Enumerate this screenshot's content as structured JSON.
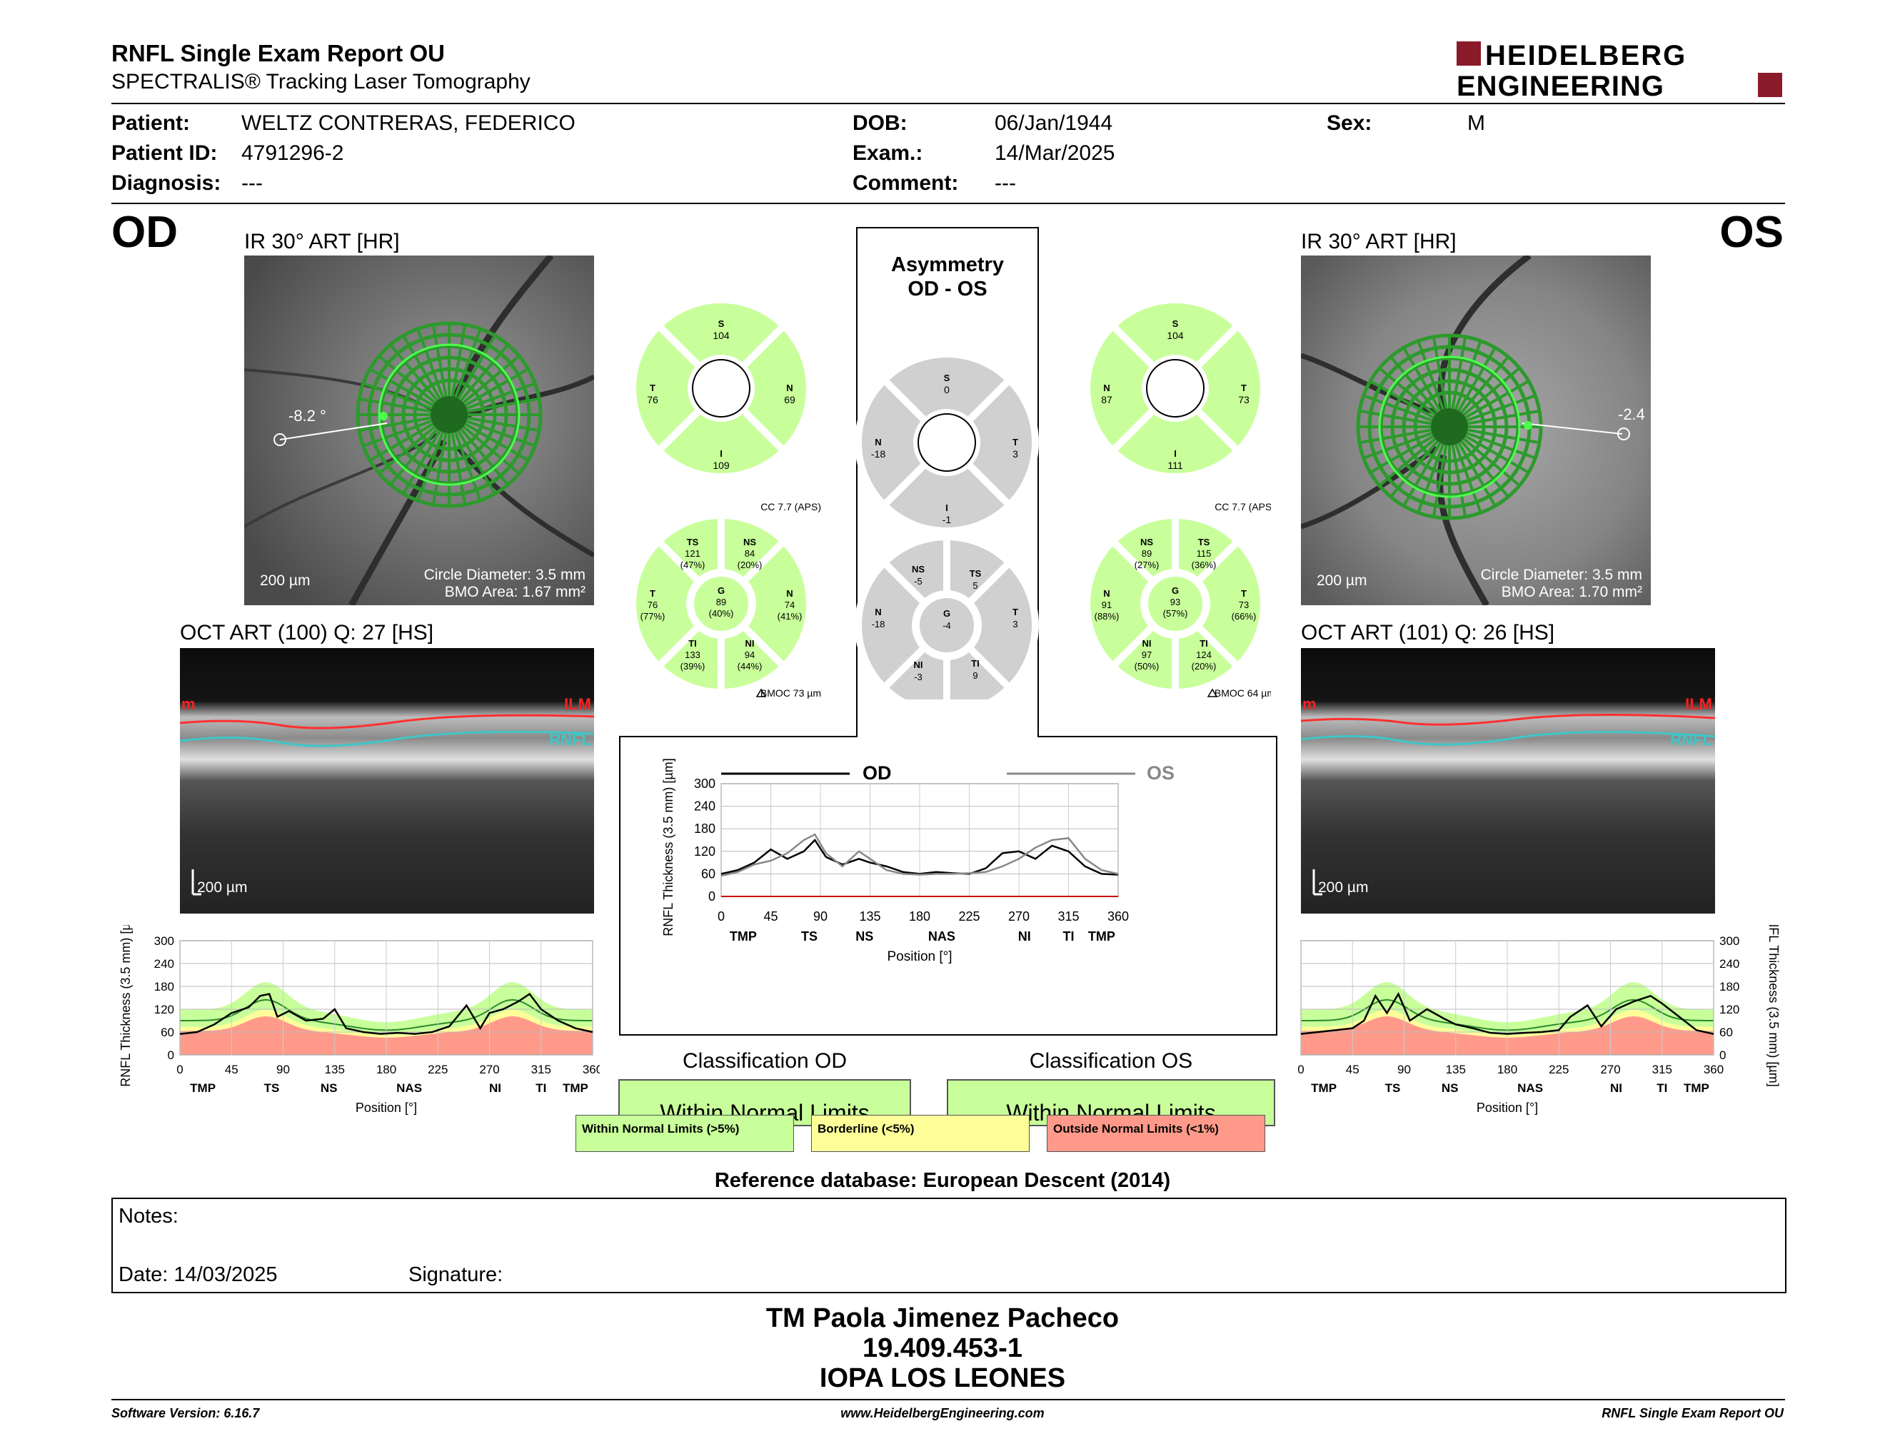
{
  "header": {
    "title": "RNFL Single Exam Report OU",
    "subtitle": "SPECTRALIS® Tracking Laser Tomography",
    "logo_line1": "HEIDELBERG",
    "logo_line2": "ENGINEERING"
  },
  "patient": {
    "patient_label": "Patient:",
    "patient_value": "WELTZ CONTRERAS, FEDERICO",
    "id_label": "Patient ID:",
    "id_value": "4791296-2",
    "diagnosis_label": "Diagnosis:",
    "diagnosis_value": "---",
    "dob_label": "DOB:",
    "dob_value": "06/Jan/1944",
    "exam_label": "Exam.:",
    "exam_value": "14/Mar/2025",
    "comment_label": "Comment:",
    "comment_value": "---",
    "sex_label": "Sex:",
    "sex_value": "M"
  },
  "od": {
    "eye": "OD",
    "ir_title": "IR 30° ART [HR]",
    "angle": "-8.2 °",
    "scale": "200 µm",
    "circle_diameter": "Circle Diameter: 3.5 mm",
    "bmo_area": "BMO Area: 1.67 mm²",
    "oct_title": "OCT ART (100) Q: 27 [HS]",
    "oct_scale": "200 µm",
    "ilm": "ILM",
    "ilm_left": "m",
    "rnfl": "RNFL",
    "quad": {
      "S": "104",
      "T": "76",
      "N": "69",
      "I": "109"
    },
    "cc": "CC 7.7 (APS)",
    "bmoc": "BMOC 73 µm",
    "sectors": {
      "TS": {
        "label": "TS",
        "val": "121",
        "pct": "(47%)"
      },
      "NS": {
        "label": "NS",
        "val": "84",
        "pct": "(20%)"
      },
      "T": {
        "label": "T",
        "val": "76",
        "pct": "(77%)"
      },
      "G": {
        "label": "G",
        "val": "89",
        "pct": "(40%)"
      },
      "N": {
        "label": "N",
        "val": "74",
        "pct": "(41%)"
      },
      "TI": {
        "label": "TI",
        "val": "133",
        "pct": "(39%)"
      },
      "NI": {
        "label": "NI",
        "val": "94",
        "pct": "(44%)"
      }
    },
    "classification_title": "Classification OD",
    "classification": "Within Normal Limits"
  },
  "os": {
    "eye": "OS",
    "ir_title": "IR 30° ART [HR]",
    "angle": "-2.4",
    "scale": "200 µm",
    "circle_diameter": "Circle Diameter: 3.5 mm",
    "bmo_area": "BMO Area: 1.70 mm²",
    "oct_title": "OCT ART (101) Q: 26 [HS]",
    "oct_scale": "200 µm",
    "ilm": "ILM",
    "ilm_left": "m",
    "rnfl": "RNFL",
    "quad": {
      "S": "104",
      "N": "87",
      "T": "73",
      "I": "111"
    },
    "cc": "CC 7.7 (APS)",
    "bmoc": "BMOC 64 µm",
    "sectors": {
      "NS": {
        "label": "NS",
        "val": "89",
        "pct": "(27%)"
      },
      "TS": {
        "label": "TS",
        "val": "115",
        "pct": "(36%)"
      },
      "N": {
        "label": "N",
        "val": "91",
        "pct": "(88%)"
      },
      "G": {
        "label": "G",
        "val": "93",
        "pct": "(57%)"
      },
      "T": {
        "label": "T",
        "val": "73",
        "pct": "(66%)"
      },
      "NI": {
        "label": "NI",
        "val": "97",
        "pct": "(50%)"
      },
      "TI": {
        "label": "TI",
        "val": "124",
        "pct": "(20%)"
      }
    },
    "classification_title": "Classification OS",
    "classification": "Within Normal Limits"
  },
  "asymmetry": {
    "title1": "Asymmetry",
    "title2": "OD - OS",
    "quad": {
      "S": "0",
      "N": "-18",
      "T": "3",
      "I": "-1"
    },
    "sectors": {
      "NS": "-5",
      "TS": "5",
      "N": "-18",
      "G": "-4",
      "T": "3",
      "NI": "-3",
      "TI": "9"
    }
  },
  "chart_common": {
    "ylabel": "RNFL Thickness (3.5 mm) [µm]",
    "xlabel": "Position [°]",
    "yticks": [
      "300",
      "240",
      "180",
      "120",
      "60",
      "0"
    ],
    "xticks": [
      "0",
      "45",
      "90",
      "135",
      "180",
      "225",
      "270",
      "315",
      "360"
    ],
    "asym_yticks": [
      "300",
      "240",
      "180",
      "120",
      "60",
      "0"
    ],
    "region_labels": [
      "TMP",
      "TS",
      "NS",
      "NAS",
      "NI",
      "TI",
      "TMP"
    ],
    "legend_od": "OD",
    "legend_os": "OS"
  },
  "legend": {
    "normal": "Within Normal Limits (>5%)",
    "borderline": "Borderline (<5%)",
    "outside": "Outside Normal Limits (<1%)"
  },
  "reference": "Reference database: European Descent (2014)",
  "notes": {
    "notes_label": "Notes:",
    "date_label": "Date: 14/03/2025",
    "signature_label": "Signature:"
  },
  "signer": {
    "name": "TM Paola Jimenez Pacheco",
    "id": "19.409.453-1",
    "org": "IOPA LOS LEONES"
  },
  "footer": {
    "software": "Software Version: 6.16.7",
    "website": "www.HeidelbergEngineering.com",
    "report": "RNFL Single Exam Report OU"
  },
  "colors": {
    "normal": "#c8ff9a",
    "borderline": "#ffff99",
    "outside": "#ff9a8a",
    "grey_sector": "#d0d0d0",
    "logo_red": "#8b1a2b"
  },
  "chart_data": [
    {
      "type": "line",
      "title": "",
      "xlabel": "Position [°]",
      "ylabel": "RNFL Thickness (3.5 mm) [µm]",
      "xlim": [
        0,
        360
      ],
      "ylim": [
        0,
        300
      ],
      "series": [
        {
          "name": "OD",
          "x": [
            0,
            15,
            30,
            45,
            60,
            70,
            78,
            85,
            95,
            110,
            125,
            135,
            145,
            160,
            175,
            190,
            205,
            220,
            235,
            250,
            262,
            270,
            282,
            295,
            305,
            315,
            330,
            345,
            360
          ],
          "y": [
            55,
            60,
            80,
            110,
            125,
            155,
            160,
            100,
            115,
            90,
            95,
            120,
            70,
            60,
            55,
            58,
            55,
            60,
            75,
            130,
            70,
            110,
            120,
            140,
            160,
            120,
            90,
            70,
            60
          ]
        }
      ]
    },
    {
      "type": "line",
      "title": "",
      "xlabel": "Position [°]",
      "ylabel": "RNFL Thickness (3.5 mm) [µm]",
      "xlim": [
        0,
        360
      ],
      "ylim": [
        0,
        300
      ],
      "series": [
        {
          "name": "OD",
          "x": [
            0,
            15,
            30,
            45,
            60,
            75,
            85,
            95,
            110,
            125,
            135,
            150,
            165,
            180,
            195,
            210,
            225,
            240,
            255,
            270,
            285,
            300,
            315,
            330,
            345,
            360
          ],
          "y": [
            60,
            70,
            90,
            125,
            100,
            120,
            150,
            105,
            85,
            100,
            90,
            80,
            65,
            60,
            65,
            62,
            60,
            75,
            115,
            120,
            100,
            135,
            120,
            80,
            60,
            58
          ]
        },
        {
          "name": "OS",
          "x": [
            0,
            15,
            30,
            45,
            60,
            75,
            85,
            95,
            110,
            125,
            135,
            150,
            165,
            180,
            195,
            210,
            225,
            240,
            255,
            270,
            285,
            300,
            315,
            330,
            345,
            360
          ],
          "y": [
            55,
            65,
            85,
            95,
            115,
            150,
            165,
            115,
            80,
            120,
            100,
            70,
            60,
            58,
            60,
            60,
            62,
            65,
            80,
            100,
            130,
            150,
            155,
            100,
            70,
            60
          ]
        }
      ]
    },
    {
      "type": "line",
      "title": "",
      "xlabel": "Position [°]",
      "ylabel": "RNFL Thickness (3.5 mm) [µm]",
      "xlim": [
        0,
        360
      ],
      "ylim": [
        0,
        300
      ],
      "series": [
        {
          "name": "OS",
          "x": [
            0,
            15,
            30,
            45,
            55,
            65,
            75,
            85,
            95,
            110,
            125,
            135,
            150,
            165,
            180,
            195,
            210,
            225,
            235,
            250,
            262,
            275,
            290,
            305,
            315,
            330,
            345,
            360
          ],
          "y": [
            55,
            60,
            65,
            70,
            90,
            155,
            110,
            160,
            90,
            120,
            95,
            80,
            70,
            58,
            55,
            58,
            60,
            65,
            100,
            130,
            75,
            120,
            140,
            155,
            135,
            100,
            65,
            55
          ]
        }
      ]
    }
  ]
}
